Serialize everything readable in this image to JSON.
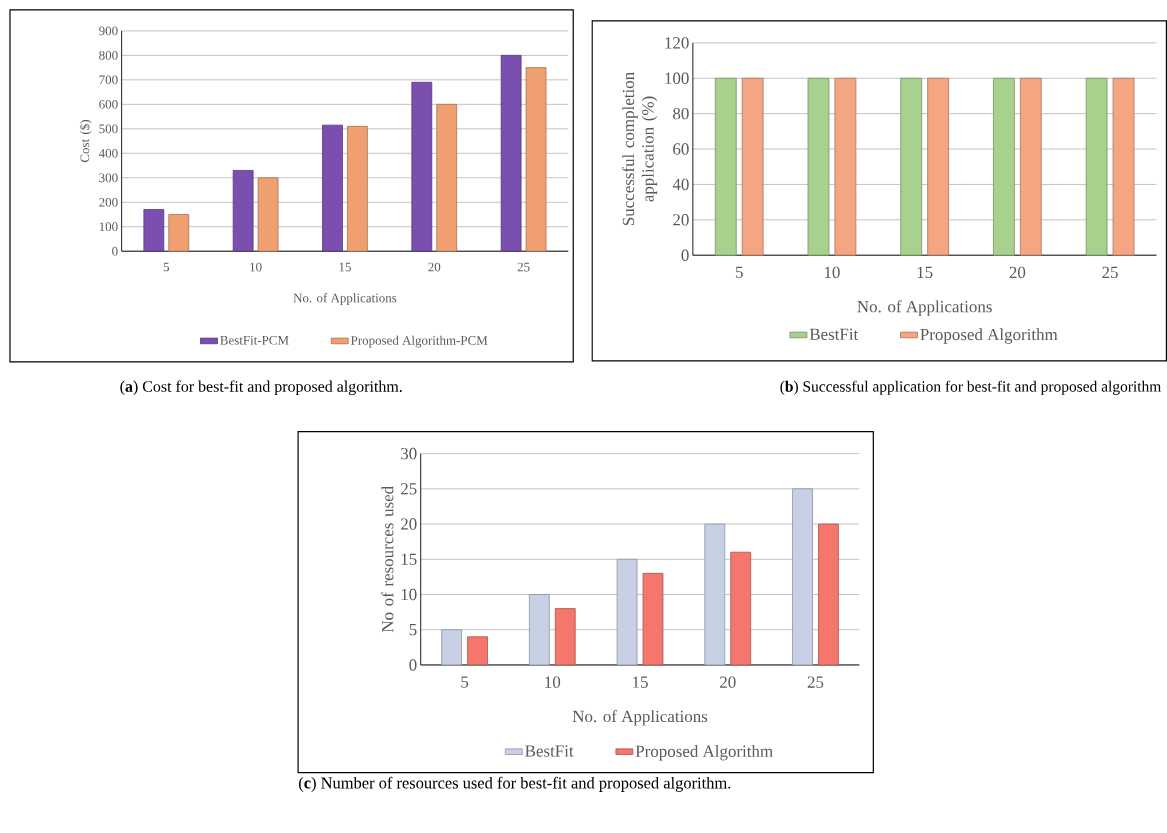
{
  "chart_data": [
    {
      "type": "bar",
      "ylabel": "Cost ($)",
      "xlabel": "No. of Applications",
      "categories": [
        "5",
        "10",
        "15",
        "20",
        "25"
      ],
      "series": [
        {
          "name": "BestFit-PCM",
          "color": "#7a4fb0",
          "values": [
            170,
            330,
            515,
            690,
            800
          ]
        },
        {
          "name": "Proposed Algorithm-PCM",
          "color": "#f0a070",
          "values": [
            150,
            300,
            510,
            600,
            750
          ]
        }
      ],
      "ylim": [
        0,
        900
      ],
      "yticks": [
        0,
        100,
        200,
        300,
        400,
        500,
        600,
        700,
        800,
        900
      ],
      "grid": "y",
      "legend": "bottom",
      "annotations": [
        "(**a**) Cost for best-fit and proposed algorithm."
      ]
    },
    {
      "type": "bar",
      "ylabel": "Successful completion application (%)",
      "xlabel": "No. of Applications",
      "categories": [
        "5",
        "10",
        "15",
        "20",
        "25"
      ],
      "series": [
        {
          "name": "BestFit",
          "color": "#a9d18e",
          "values": [
            100,
            100,
            100,
            100,
            100
          ]
        },
        {
          "name": "Proposed Algorithm",
          "color": "#f4a582",
          "values": [
            100,
            100,
            100,
            100,
            100
          ]
        }
      ],
      "ylim": [
        0,
        120
      ],
      "yticks": [
        0,
        20,
        40,
        60,
        80,
        100,
        120
      ],
      "grid": "y",
      "legend": "bottom",
      "annotations": [
        "(**b**) Successful application for best-fit and proposed algorithm"
      ]
    },
    {
      "type": "bar",
      "ylabel": "No of resources used",
      "xlabel": "No. of Applications",
      "categories": [
        "5",
        "10",
        "15",
        "20",
        "25"
      ],
      "series": [
        {
          "name": "BestFit",
          "color": "#c8d0e6",
          "values": [
            5,
            10,
            15,
            20,
            25
          ]
        },
        {
          "name": "Proposed Algorithm",
          "color": "#f4766c",
          "values": [
            4,
            8,
            13,
            16,
            20
          ]
        }
      ],
      "ylim": [
        0,
        30
      ],
      "yticks": [
        0,
        5,
        10,
        15,
        20,
        25,
        30
      ],
      "grid": "y",
      "legend": "bottom",
      "annotations": [
        "(**c**) Number of resources used for best-fit and proposed algorithm."
      ]
    }
  ]
}
